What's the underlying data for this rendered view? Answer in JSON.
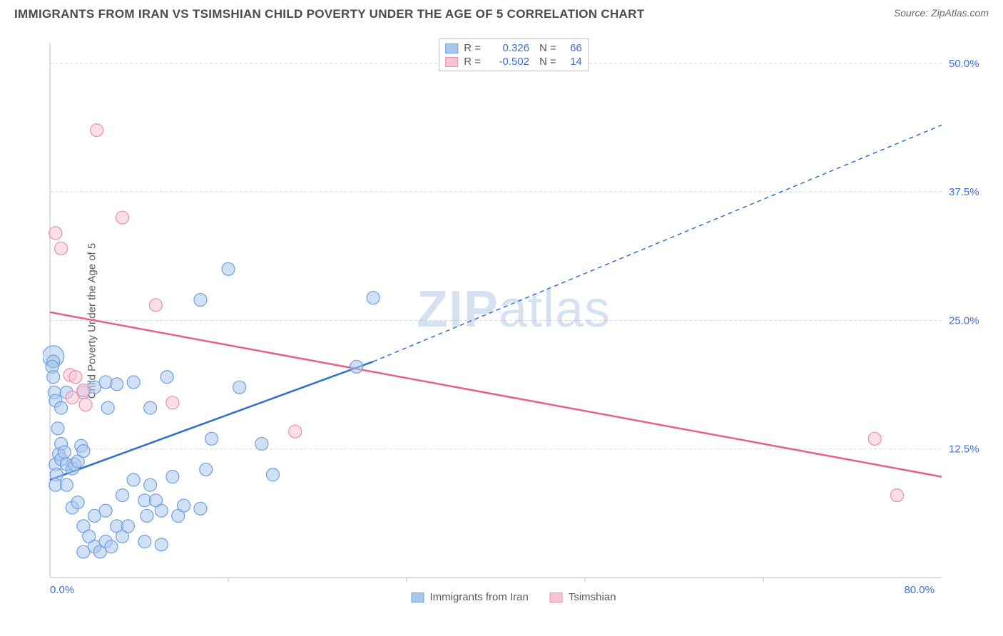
{
  "header": {
    "title": "IMMIGRANTS FROM IRAN VS TSIMSHIAN CHILD POVERTY UNDER THE AGE OF 5 CORRELATION CHART",
    "source": "Source: ZipAtlas.com"
  },
  "watermark": {
    "bold": "ZIP",
    "rest": "atlas"
  },
  "chart": {
    "type": "scatter",
    "yaxis_label": "Child Poverty Under the Age of 5",
    "xlim": [
      0,
      80
    ],
    "ylim": [
      0,
      52
    ],
    "x_origin_label": "0.0%",
    "x_max_label": "80.0%",
    "x_ticks": [
      16,
      32,
      48,
      64
    ],
    "y_ticks": [
      {
        "v": 12.5,
        "label": "12.5%"
      },
      {
        "v": 25.0,
        "label": "25.0%"
      },
      {
        "v": 37.5,
        "label": "37.5%"
      },
      {
        "v": 50.0,
        "label": "50.0%"
      }
    ],
    "background_color": "#ffffff",
    "grid_color": "#d8d8d8",
    "grid_dash": "4,3",
    "axis_color": "#bfbfbf",
    "series": [
      {
        "name": "Immigrants from Iran",
        "fill": "#a9c7ec",
        "stroke": "#6fa0df",
        "fill_opacity": 0.55,
        "marker_r": 9,
        "line_color": "#2f6fd0",
        "line_width": 2.5,
        "trend_solid": {
          "x1": 0,
          "y1": 9.5,
          "x2": 29,
          "y2": 21.0
        },
        "trend_dashed": {
          "x1": 29,
          "y1": 21.0,
          "x2": 80,
          "y2": 44.0
        },
        "R": "0.326",
        "N": "66",
        "points": [
          [
            0.5,
            11
          ],
          [
            0.6,
            10
          ],
          [
            0.8,
            12
          ],
          [
            1,
            11.5
          ],
          [
            1,
            13
          ],
          [
            1.3,
            12.2
          ],
          [
            1.5,
            11
          ],
          [
            0.5,
            9
          ],
          [
            1.5,
            9
          ],
          [
            2,
            10.6
          ],
          [
            2.2,
            11
          ],
          [
            2.5,
            11.3
          ],
          [
            2.8,
            12.8
          ],
          [
            3,
            12.3
          ],
          [
            0.3,
            21
          ],
          [
            0.2,
            20.5
          ],
          [
            0.3,
            19.5
          ],
          [
            0.4,
            18
          ],
          [
            1.5,
            18
          ],
          [
            0.5,
            17.2
          ],
          [
            1,
            16.5
          ],
          [
            3,
            18
          ],
          [
            4,
            18.5
          ],
          [
            5,
            19
          ],
          [
            5.2,
            16.5
          ],
          [
            6,
            18.8
          ],
          [
            7.5,
            19
          ],
          [
            9,
            16.5
          ],
          [
            0.7,
            14.5
          ],
          [
            2,
            6.8
          ],
          [
            2.5,
            7.3
          ],
          [
            3,
            5
          ],
          [
            3,
            2.5
          ],
          [
            3.5,
            4
          ],
          [
            4,
            3
          ],
          [
            4,
            6
          ],
          [
            4.5,
            2.5
          ],
          [
            5,
            3.5
          ],
          [
            5,
            6.5
          ],
          [
            5.5,
            3
          ],
          [
            6,
            5
          ],
          [
            6.5,
            4
          ],
          [
            6.5,
            8
          ],
          [
            7,
            5
          ],
          [
            7.5,
            9.5
          ],
          [
            8.5,
            3.5
          ],
          [
            8.5,
            7.5
          ],
          [
            8.7,
            6
          ],
          [
            9,
            9
          ],
          [
            9.5,
            7.5
          ],
          [
            10,
            3.2
          ],
          [
            10,
            6.5
          ],
          [
            11,
            9.8
          ],
          [
            11.5,
            6
          ],
          [
            12,
            7
          ],
          [
            13.5,
            6.7
          ],
          [
            14.5,
            13.5
          ],
          [
            14,
            10.5
          ],
          [
            16,
            30
          ],
          [
            13.5,
            27
          ],
          [
            17,
            18.5
          ],
          [
            19,
            13
          ],
          [
            20,
            10
          ],
          [
            27.5,
            20.5
          ],
          [
            29,
            27.2
          ],
          [
            10.5,
            19.5
          ]
        ],
        "big_point": {
          "x": 0.3,
          "y": 21.5,
          "r": 15
        }
      },
      {
        "name": "Tsimshian",
        "fill": "#f6c5d2",
        "stroke": "#e98fab",
        "fill_opacity": 0.55,
        "marker_r": 9,
        "line_color": "#e85f86",
        "line_width": 2.5,
        "trend_solid": {
          "x1": 0,
          "y1": 25.8,
          "x2": 80,
          "y2": 9.8
        },
        "R": "-0.502",
        "N": "14",
        "points": [
          [
            0.5,
            33.5
          ],
          [
            1,
            32
          ],
          [
            1.8,
            19.7
          ],
          [
            2,
            17.5
          ],
          [
            2.3,
            19.5
          ],
          [
            3,
            18.2
          ],
          [
            3.2,
            16.8
          ],
          [
            4.2,
            43.5
          ],
          [
            6.5,
            35
          ],
          [
            9.5,
            26.5
          ],
          [
            11,
            17
          ],
          [
            22,
            14.2
          ],
          [
            74,
            13.5
          ],
          [
            76,
            8
          ]
        ]
      }
    ]
  }
}
